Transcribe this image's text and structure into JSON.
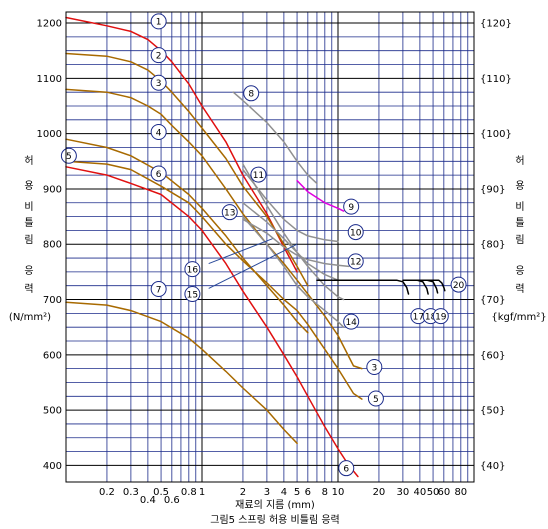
{
  "chart_data": {
    "type": "line",
    "x_scale": "log",
    "xlim": [
      0.1,
      100
    ],
    "ylim": [
      370,
      1220
    ],
    "grid": true,
    "x_ticks_upper": [
      "0.2",
      "0.3",
      "0.5",
      "0.8",
      "1",
      "2",
      "3",
      "4",
      "5",
      "6",
      "8",
      "10",
      "20",
      "30",
      "40",
      "50",
      "60",
      "80"
    ],
    "x_ticks_lower": [
      "0.4",
      "0.6"
    ],
    "y_ticks_left": [
      "1200",
      "1100",
      "1000",
      "900",
      "800",
      "700",
      "600",
      "500",
      "400"
    ],
    "y_ticks_right": [
      "{120}",
      "{110}",
      "{100}",
      "{90}",
      "{80}",
      "{70}",
      "{60}",
      "{50}",
      "{40}"
    ],
    "xlabel": "재료의 지름 (mm)",
    "caption": "그림5 스프링 허용 비틀림 응력",
    "left_axis": {
      "chars": [
        "허",
        "용",
        "비",
        "틀",
        "림",
        "응",
        "력"
      ],
      "unit": "(N/mm²)"
    },
    "right_axis": {
      "chars": [
        "허",
        "용",
        "비",
        "틀",
        "림",
        "응",
        "력"
      ],
      "unit": "{kgf/mm²}"
    },
    "series": [
      {
        "name": "1",
        "color": "#e01010",
        "points": [
          [
            0.1,
            1210
          ],
          [
            0.2,
            1195
          ],
          [
            0.3,
            1185
          ],
          [
            0.4,
            1170
          ],
          [
            0.5,
            1150
          ],
          [
            0.6,
            1130
          ],
          [
            0.8,
            1090
          ],
          [
            1,
            1050
          ],
          [
            1.5,
            985
          ],
          [
            2,
            925
          ],
          [
            3,
            855
          ],
          [
            4,
            795
          ],
          [
            5,
            750
          ]
        ]
      },
      {
        "name": "6",
        "color": "#e01010",
        "points": [
          [
            0.1,
            940
          ],
          [
            0.2,
            925
          ],
          [
            0.3,
            910
          ],
          [
            0.5,
            890
          ],
          [
            0.8,
            850
          ],
          [
            1,
            825
          ],
          [
            1.5,
            765
          ],
          [
            2,
            715
          ],
          [
            3,
            650
          ],
          [
            4,
            600
          ],
          [
            5,
            560
          ],
          [
            6,
            525
          ],
          [
            8,
            470
          ],
          [
            10,
            430
          ],
          [
            12,
            400
          ],
          [
            14,
            380
          ]
        ]
      },
      {
        "name": "2",
        "color": "#a86a00",
        "points": [
          [
            0.1,
            1145
          ],
          [
            0.2,
            1140
          ],
          [
            0.3,
            1130
          ],
          [
            0.4,
            1115
          ],
          [
            0.5,
            1095
          ],
          [
            0.6,
            1075
          ],
          [
            0.8,
            1040
          ],
          [
            1,
            1010
          ],
          [
            1.5,
            955
          ],
          [
            2,
            905
          ],
          [
            3,
            850
          ],
          [
            4,
            800
          ],
          [
            5,
            760
          ],
          [
            6,
            725
          ]
        ]
      },
      {
        "name": "3",
        "color": "#a86a00",
        "points": [
          [
            0.1,
            1080
          ],
          [
            0.2,
            1075
          ],
          [
            0.3,
            1065
          ],
          [
            0.4,
            1050
          ],
          [
            0.5,
            1035
          ],
          [
            0.6,
            1015
          ],
          [
            0.8,
            985
          ],
          [
            1,
            960
          ],
          [
            1.5,
            900
          ],
          [
            2,
            855
          ],
          [
            3,
            800
          ],
          [
            4,
            765
          ],
          [
            5,
            735
          ],
          [
            6,
            710
          ],
          [
            8,
            670
          ],
          [
            10,
            635
          ],
          [
            13,
            580
          ],
          [
            15,
            575
          ]
        ]
      },
      {
        "name": "4",
        "color": "#a86a00",
        "points": [
          [
            0.1,
            990
          ],
          [
            0.2,
            975
          ],
          [
            0.3,
            960
          ],
          [
            0.5,
            930
          ],
          [
            0.8,
            890
          ],
          [
            1,
            865
          ],
          [
            1.5,
            815
          ],
          [
            2,
            775
          ],
          [
            3,
            725
          ],
          [
            4,
            690
          ],
          [
            5,
            660
          ],
          [
            6,
            640
          ]
        ]
      },
      {
        "name": "5",
        "color": "#a86a00",
        "points": [
          [
            0.1,
            950
          ],
          [
            0.2,
            945
          ],
          [
            0.3,
            935
          ],
          [
            0.5,
            905
          ],
          [
            0.8,
            875
          ],
          [
            1,
            850
          ],
          [
            1.5,
            800
          ],
          [
            2,
            770
          ],
          [
            3,
            730
          ],
          [
            4,
            700
          ],
          [
            5,
            680
          ],
          [
            6,
            655
          ],
          [
            8,
            610
          ],
          [
            10,
            575
          ],
          [
            13,
            530
          ],
          [
            15,
            520
          ]
        ]
      },
      {
        "name": "7",
        "color": "#a86a00",
        "points": [
          [
            0.1,
            695
          ],
          [
            0.2,
            690
          ],
          [
            0.3,
            680
          ],
          [
            0.5,
            660
          ],
          [
            0.8,
            630
          ],
          [
            1,
            610
          ],
          [
            1.5,
            570
          ],
          [
            2,
            540
          ],
          [
            3,
            500
          ],
          [
            4,
            465
          ],
          [
            5,
            440
          ]
        ]
      },
      {
        "name": "8",
        "color": "#909090",
        "points": [
          [
            1.7,
            1075
          ],
          [
            2,
            1060
          ],
          [
            3,
            1020
          ],
          [
            4,
            985
          ],
          [
            5,
            950
          ],
          [
            6,
            925
          ],
          [
            7,
            910
          ]
        ]
      },
      {
        "name": "9",
        "color": "#e000e0",
        "points": [
          [
            5,
            915
          ],
          [
            6,
            895
          ],
          [
            8,
            875
          ],
          [
            10,
            865
          ],
          [
            11,
            860
          ]
        ]
      },
      {
        "name": "10",
        "color": "#909090",
        "points": [
          [
            2,
            935
          ],
          [
            3,
            880
          ],
          [
            4,
            845
          ],
          [
            5,
            825
          ],
          [
            6,
            815
          ],
          [
            8,
            808
          ],
          [
            10,
            805
          ]
        ]
      },
      {
        "name": "11",
        "color": "#909090",
        "points": [
          [
            2,
            945
          ],
          [
            3,
            870
          ],
          [
            4,
            820
          ],
          [
            5,
            785
          ],
          [
            6,
            760
          ],
          [
            8,
            725
          ],
          [
            10,
            705
          ],
          [
            11,
            700
          ]
        ]
      },
      {
        "name": "12",
        "color": "#909090",
        "points": [
          [
            2,
            845
          ],
          [
            3,
            820
          ],
          [
            4,
            795
          ],
          [
            5,
            780
          ],
          [
            6,
            772
          ],
          [
            8,
            765
          ],
          [
            10,
            762
          ],
          [
            12,
            760
          ]
        ]
      },
      {
        "name": "13",
        "color": "#909090",
        "points": [
          [
            2,
            875
          ],
          [
            3,
            840
          ],
          [
            4,
            810
          ],
          [
            5,
            785
          ],
          [
            6,
            765
          ],
          [
            8,
            745
          ],
          [
            10,
            735
          ]
        ]
      },
      {
        "name": "14",
        "color": "#909090",
        "points": [
          [
            2,
            850
          ],
          [
            3,
            800
          ],
          [
            4,
            760
          ],
          [
            5,
            725
          ],
          [
            6,
            705
          ],
          [
            8,
            680
          ],
          [
            10,
            660
          ],
          [
            11,
            650
          ]
        ]
      },
      {
        "name": "17",
        "color": "#000000",
        "points": [
          [
            7,
            735
          ],
          [
            20,
            735
          ],
          [
            27,
            735
          ],
          [
            30,
            732
          ],
          [
            32,
            722
          ],
          [
            33,
            710
          ]
        ]
      },
      {
        "name": "18",
        "color": "#000000",
        "points": [
          [
            30,
            735
          ],
          [
            38,
            735
          ],
          [
            42,
            732
          ],
          [
            45,
            720
          ],
          [
            46,
            710
          ]
        ]
      },
      {
        "name": "19",
        "color": "#000000",
        "points": [
          [
            35,
            735
          ],
          [
            45,
            735
          ],
          [
            50,
            732
          ],
          [
            53,
            720
          ],
          [
            54,
            712
          ]
        ]
      },
      {
        "name": "20",
        "color": "#000000",
        "points": [
          [
            40,
            735
          ],
          [
            55,
            735
          ],
          [
            58,
            730
          ],
          [
            60,
            722
          ],
          [
            61,
            716
          ]
        ]
      }
    ],
    "pointer_lines": [
      {
        "name": "16",
        "from": [
          1.12,
          765
        ],
        "to": [
          3.3,
          810
        ]
      },
      {
        "name": "15",
        "from": [
          1.12,
          720
        ],
        "to": [
          5,
          800
        ]
      }
    ],
    "callouts": [
      {
        "label": "1",
        "x": 0.48,
        "y": 1203
      },
      {
        "label": "2",
        "x": 0.48,
        "y": 1142
      },
      {
        "label": "3",
        "x": 0.48,
        "y": 1092
      },
      {
        "label": "4",
        "x": 0.48,
        "y": 1003
      },
      {
        "label": "5",
        "x": 0.105,
        "y": 960
      },
      {
        "label": "6",
        "x": 0.48,
        "y": 928
      },
      {
        "label": "7",
        "x": 0.48,
        "y": 719
      },
      {
        "label": "8",
        "x": 2.3,
        "y": 1073
      },
      {
        "label": "9",
        "x": 12.5,
        "y": 868
      },
      {
        "label": "10",
        "x": 13.5,
        "y": 822
      },
      {
        "label": "11",
        "x": 2.6,
        "y": 926
      },
      {
        "label": "12",
        "x": 13.5,
        "y": 769
      },
      {
        "label": "13",
        "x": 1.6,
        "y": 858
      },
      {
        "label": "14",
        "x": 12.5,
        "y": 660
      },
      {
        "label": "15",
        "x": 0.85,
        "y": 710
      },
      {
        "label": "16",
        "x": 0.85,
        "y": 755
      },
      {
        "label": "17",
        "x": 39,
        "y": 670
      },
      {
        "label": "18",
        "x": 48,
        "y": 670
      },
      {
        "label": "19",
        "x": 57,
        "y": 670
      },
      {
        "label": "20",
        "x": 77,
        "y": 727
      },
      {
        "label": "3",
        "x": 18.5,
        "y": 578
      },
      {
        "label": "5",
        "x": 19,
        "y": 521
      },
      {
        "label": "6",
        "x": 11.5,
        "y": 395
      }
    ]
  }
}
